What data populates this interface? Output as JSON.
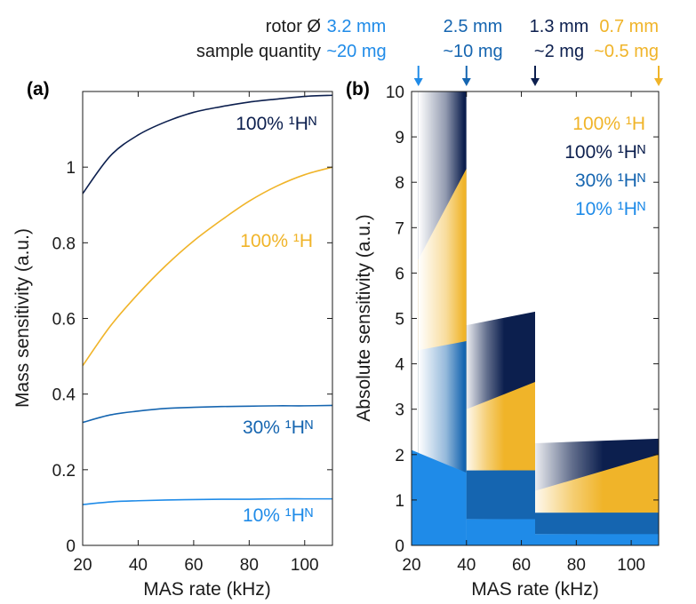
{
  "colors": {
    "navy": "#0c1f4e",
    "gold": "#f0b429",
    "mid_blue": "#1565b0",
    "light_blue": "#1f8be8",
    "axis": "#1a1a1a"
  },
  "header": {
    "rotor_label": "rotor Ø",
    "sample_label": "sample quantity",
    "columns": [
      {
        "rotor": "3.2 mm",
        "sample": "~20 mg",
        "color": "#1f8be8",
        "mas_rate_khz": 22.5
      },
      {
        "rotor": "2.5 mm",
        "sample": "~10 mg",
        "color": "#1565b0",
        "mas_rate_khz": 40
      },
      {
        "rotor": "1.3 mm",
        "sample": "~2 mg",
        "color": "#0c1f4e",
        "mas_rate_khz": 65
      },
      {
        "rotor": "0.7 mm",
        "sample": "~0.5 mg",
        "color": "#f0b429",
        "mas_rate_khz": 110
      }
    ]
  },
  "chart_data": [
    {
      "panel": "(a)",
      "type": "line",
      "xlabel": "MAS rate (kHz)",
      "ylabel": "Mass sensitivity (a.u.)",
      "xlim": [
        20,
        110
      ],
      "ylim": [
        0,
        1.2
      ],
      "xticks": [
        "20",
        "40",
        "60",
        "80",
        "100"
      ],
      "yticks": [
        "0",
        "0.2",
        "0.4",
        "0.6",
        "0.8",
        "1"
      ],
      "grid": false,
      "series": [
        {
          "name": "100% ¹Hᴺ",
          "color": "#0c1f4e",
          "x": [
            20,
            30,
            40,
            50,
            60,
            70,
            80,
            90,
            100,
            110
          ],
          "y": [
            0.93,
            1.03,
            1.085,
            1.12,
            1.145,
            1.16,
            1.172,
            1.18,
            1.187,
            1.19
          ]
        },
        {
          "name": "100% ¹H",
          "color": "#f0b429",
          "x": [
            20,
            30,
            40,
            50,
            60,
            70,
            80,
            90,
            100,
            110
          ],
          "y": [
            0.475,
            0.58,
            0.665,
            0.74,
            0.805,
            0.86,
            0.91,
            0.95,
            0.98,
            1.0
          ]
        },
        {
          "name": "30% ¹Hᴺ",
          "color": "#1565b0",
          "x": [
            20,
            30,
            40,
            50,
            60,
            70,
            80,
            90,
            100,
            110
          ],
          "y": [
            0.325,
            0.345,
            0.355,
            0.362,
            0.365,
            0.367,
            0.368,
            0.369,
            0.369,
            0.37
          ]
        },
        {
          "name": "10% ¹Hᴺ",
          "color": "#1f8be8",
          "x": [
            20,
            30,
            40,
            50,
            60,
            70,
            80,
            90,
            100,
            110
          ],
          "y": [
            0.108,
            0.115,
            0.118,
            0.12,
            0.121,
            0.122,
            0.122,
            0.123,
            0.123,
            0.123
          ]
        }
      ]
    },
    {
      "panel": "(b)",
      "type": "area",
      "xlabel": "MAS rate (kHz)",
      "ylabel": "Absolute sensitivity (a.u.)",
      "xlim": [
        20,
        110
      ],
      "ylim": [
        0,
        10
      ],
      "xticks": [
        "20",
        "40",
        "60",
        "80",
        "100"
      ],
      "yticks": [
        "0",
        "1",
        "2",
        "3",
        "4",
        "5",
        "6",
        "7",
        "8",
        "9",
        "10"
      ],
      "grid": false,
      "legend": "top-right",
      "series": [
        {
          "name": "100% ¹H",
          "color": "#f0b429",
          "segments": [
            {
              "x": [
                22.5,
                40
              ],
              "y": [
                6.3,
                8.3
              ]
            },
            {
              "x": [
                40,
                65
              ],
              "y": [
                3.0,
                3.6
              ]
            },
            {
              "x": [
                65,
                110
              ],
              "y": [
                1.2,
                2.0
              ]
            }
          ]
        },
        {
          "name": "100% ¹Hᴺ",
          "color": "#0c1f4e",
          "segments": [
            {
              "x": [
                22.5,
                40
              ],
              "y": [
                12.0,
                16.0
              ]
            },
            {
              "x": [
                40,
                65
              ],
              "y": [
                4.85,
                5.15
              ]
            },
            {
              "x": [
                65,
                110
              ],
              "y": [
                2.25,
                2.35
              ]
            }
          ]
        },
        {
          "name": "30% ¹Hᴺ",
          "color": "#1565b0",
          "segments": [
            {
              "x": [
                22.5,
                40
              ],
              "y": [
                4.3,
                4.5
              ]
            },
            {
              "x": [
                40,
                65
              ],
              "y": [
                1.65,
                1.65
              ]
            },
            {
              "x": [
                65,
                110
              ],
              "y": [
                0.72,
                0.72
              ]
            }
          ]
        },
        {
          "name": "10% ¹Hᴺ",
          "color": "#1f8be8",
          "segments": [
            {
              "x": [
                20,
                40
              ],
              "y": [
                2.1,
                1.6
              ]
            },
            {
              "x": [
                40,
                65
              ],
              "y": [
                0.58,
                0.58
              ]
            },
            {
              "x": [
                65,
                110
              ],
              "y": [
                0.25,
                0.25
              ]
            }
          ]
        }
      ]
    }
  ]
}
